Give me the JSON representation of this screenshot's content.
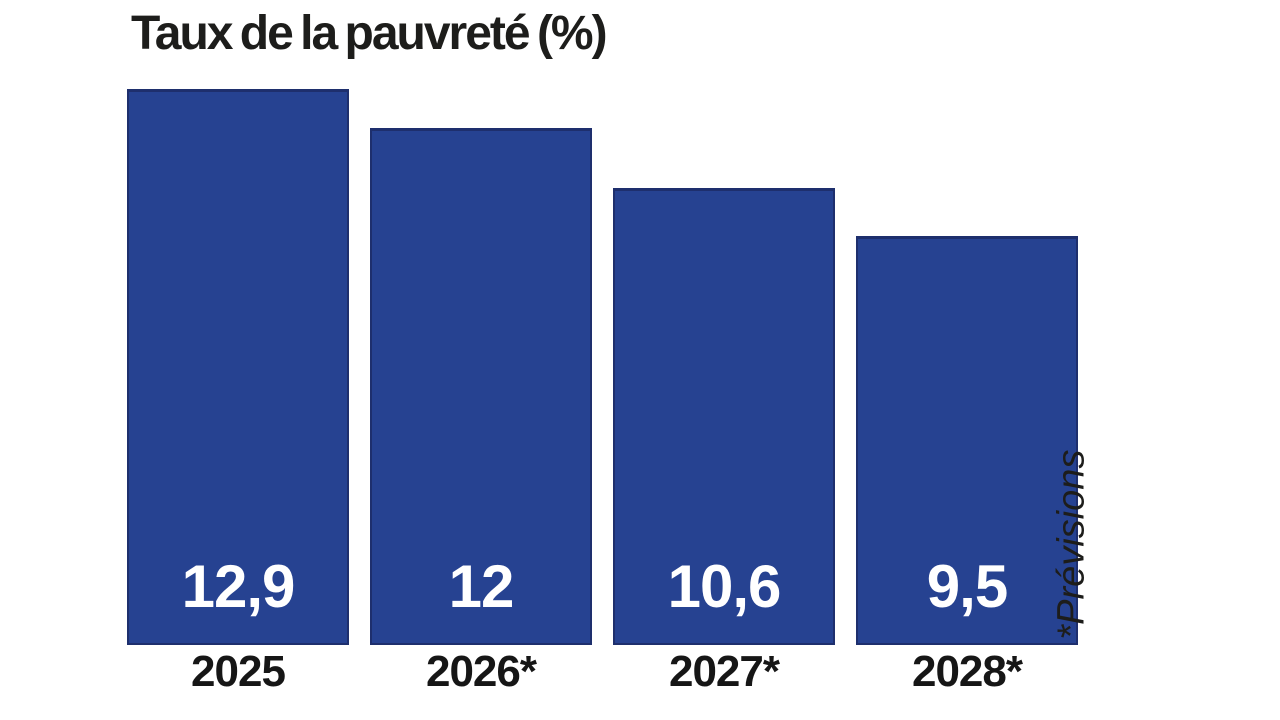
{
  "colors": {
    "bar": "#264291",
    "bar_edge": "#1e2f6d",
    "title_text": "#1d1d1b",
    "axis_text": "#161616",
    "value_text": "#ffffff",
    "background": "#ffffff"
  },
  "chart_data": {
    "type": "bar",
    "title": "Taux de la pauvreté (%)",
    "categories": [
      "2025",
      "2026*",
      "2027*",
      "2028*"
    ],
    "values": [
      12.9,
      12,
      10.6,
      9.5
    ],
    "value_labels": [
      "12,9",
      "12",
      "10,6",
      "9,5"
    ],
    "annotation": "*Prévisions",
    "xlabel": "",
    "ylabel": "",
    "ylim": [
      0,
      13
    ],
    "grid": false,
    "legend": "none",
    "bar_color": "#264291",
    "value_label_position": "inside-bottom",
    "notes": "Starred years are forecasts (*Prévisions); values shown with French decimal commas"
  }
}
